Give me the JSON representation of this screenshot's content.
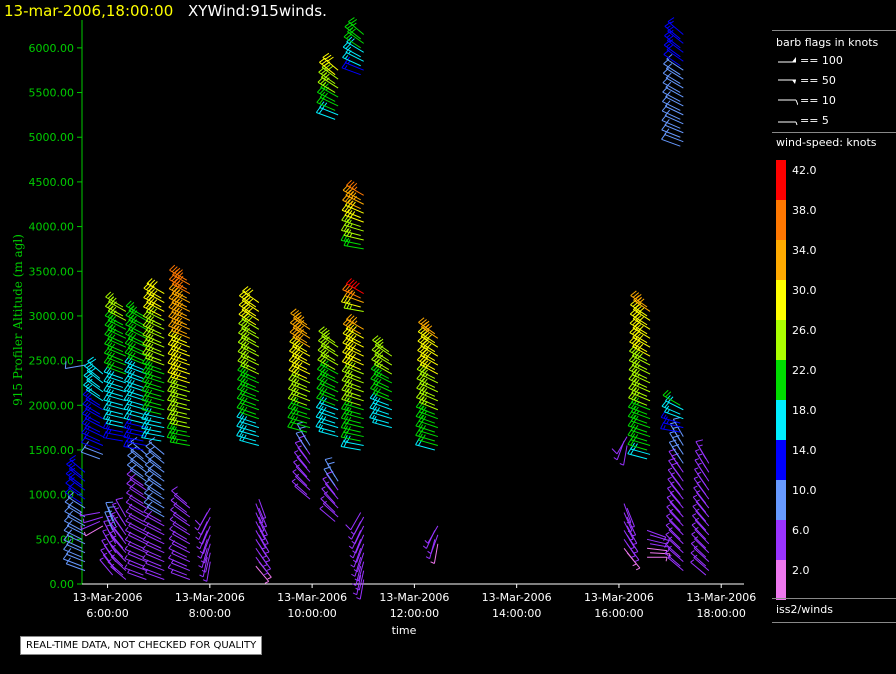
{
  "header": {
    "date": "13-mar-2006,18:00:00",
    "title": "XYWind:915winds."
  },
  "legend": {
    "barb_title": "barb flags in knots",
    "barb_flags": [
      "== 100",
      "== 50",
      "== 10",
      "== 5"
    ],
    "speed_title": "wind-speed: knots",
    "colorbar": [
      {
        "label": "42.0",
        "color": "#ff0000"
      },
      {
        "label": "38.0",
        "color": "#ff7700"
      },
      {
        "label": "34.0",
        "color": "#ffaa00"
      },
      {
        "label": "30.0",
        "color": "#ffff00"
      },
      {
        "label": "26.0",
        "color": "#aaff00"
      },
      {
        "label": "22.0",
        "color": "#00dd00"
      },
      {
        "label": "18.0",
        "color": "#00eeff"
      },
      {
        "label": "14.0",
        "color": "#0000ff"
      },
      {
        "label": "10.0",
        "color": "#6699ff"
      },
      {
        "label": "6.0",
        "color": "#9933ff"
      },
      {
        "label": "2.0",
        "color": "#ee77ee"
      }
    ],
    "platform": "iss2/winds"
  },
  "quality_note": "REAL-TIME DATA, NOT CHECKED FOR QUALITY",
  "chart_data": {
    "type": "scatter",
    "subtype": "wind-barbs",
    "ylabel": "915 Profiler Altitude (m agl)",
    "xlabel": "time",
    "ylim": [
      0,
      6200
    ],
    "xlim_hours": [
      5.5,
      18.25
    ],
    "yticks": [
      "0.00",
      "500.00",
      "1000.00",
      "1500.00",
      "2000.00",
      "2500.00",
      "3000.00",
      "3500.00",
      "4000.00",
      "4500.00",
      "5000.00",
      "5500.00",
      "6000.00"
    ],
    "xticks": [
      {
        "date": "13-Mar-2006",
        "time": "6:00:00",
        "hour": 6
      },
      {
        "date": "13-Mar-2006",
        "time": "8:00:00",
        "hour": 8
      },
      {
        "date": "13-Mar-2006",
        "time": "10:00:00",
        "hour": 10
      },
      {
        "date": "13-Mar-2006",
        "time": "12:00:00",
        "hour": 12
      },
      {
        "date": "13-Mar-2006",
        "time": "14:00:00",
        "hour": 14
      },
      {
        "date": "13-Mar-2006",
        "time": "16:00:00",
        "hour": 16
      },
      {
        "date": "13-Mar-2006",
        "time": "18:00:00",
        "hour": 18
      }
    ],
    "profiles": [
      {
        "hour": 5.5,
        "segments": [
          {
            "from": 150,
            "to": 1250,
            "speed": 11,
            "dir": 300
          },
          {
            "from": 2450,
            "to": 2450,
            "speed": 15,
            "dir": 270
          }
        ]
      },
      {
        "hour": 5.85,
        "segments": [
          {
            "from": 650,
            "to": 800,
            "speed": 5,
            "dir": 250
          },
          {
            "from": 1400,
            "to": 2350,
            "speed": 15,
            "dir": 300
          }
        ]
      },
      {
        "hour": 6.1,
        "segments": [
          {
            "from": 100,
            "to": 700,
            "speed": 7,
            "dir": 330
          }
        ]
      },
      {
        "hour": 6.3,
        "segments": [
          {
            "from": 50,
            "to": 750,
            "speed": 6,
            "dir": 320
          },
          {
            "from": 1600,
            "to": 3100,
            "speed": 20,
            "dir": 290
          }
        ]
      },
      {
        "hour": 6.7,
        "segments": [
          {
            "from": 50,
            "to": 1450,
            "speed": 7,
            "dir": 300
          },
          {
            "from": 1500,
            "to": 3000,
            "speed": 19,
            "dir": 290
          }
        ]
      },
      {
        "hour": 7.05,
        "segments": [
          {
            "from": 50,
            "to": 1450,
            "speed": 8,
            "dir": 300
          },
          {
            "from": 1600,
            "to": 3250,
            "speed": 24,
            "dir": 290
          }
        ]
      },
      {
        "hour": 7.55,
        "segments": [
          {
            "from": 50,
            "to": 900,
            "speed": 6,
            "dir": 300
          },
          {
            "from": 1550,
            "to": 3400,
            "speed": 30,
            "dir": 290
          }
        ]
      },
      {
        "hour": 7.95,
        "segments": [
          {
            "from": 250,
            "to": 850,
            "speed": 6,
            "dir": 200
          }
        ]
      },
      {
        "hour": 8.9,
        "segments": [
          {
            "from": 200,
            "to": 950,
            "speed": 5,
            "dir": 150
          },
          {
            "from": 1550,
            "to": 3150,
            "speed": 24,
            "dir": 295
          }
        ]
      },
      {
        "hour": 9.9,
        "segments": [
          {
            "from": 950,
            "to": 1600,
            "speed": 7,
            "dir": 320
          },
          {
            "from": 1700,
            "to": 2900,
            "speed": 28,
            "dir": 295
          }
        ]
      },
      {
        "hour": 10.45,
        "segments": [
          {
            "from": 700,
            "to": 1200,
            "speed": 7,
            "dir": 320
          },
          {
            "from": 1650,
            "to": 2700,
            "speed": 22,
            "dir": 295
          },
          {
            "from": 5200,
            "to": 5750,
            "speed": 24,
            "dir": 300
          }
        ]
      },
      {
        "hour": 10.95,
        "segments": [
          {
            "from": 50,
            "to": 800,
            "speed": 6,
            "dir": 200
          },
          {
            "from": 1500,
            "to": 2850,
            "speed": 26,
            "dir": 290
          },
          {
            "from": 3050,
            "to": 3250,
            "speed": 32,
            "dir": 290
          },
          {
            "from": 3750,
            "to": 4350,
            "speed": 29,
            "dir": 290
          },
          {
            "from": 5700,
            "to": 6150,
            "speed": 19,
            "dir": 300
          }
        ]
      },
      {
        "hour": 11.5,
        "segments": [
          {
            "from": 1750,
            "to": 2600,
            "speed": 22,
            "dir": 295
          }
        ]
      },
      {
        "hour": 12.4,
        "segments": [
          {
            "from": 1500,
            "to": 2800,
            "speed": 26,
            "dir": 295
          },
          {
            "from": 450,
            "to": 650,
            "speed": 5,
            "dir": 200
          }
        ]
      },
      {
        "hour": 16.1,
        "segments": [
          {
            "from": 350,
            "to": 900,
            "speed": 5,
            "dir": 150
          },
          {
            "from": 1550,
            "to": 1650,
            "speed": 6,
            "dir": 200
          }
        ]
      },
      {
        "hour": 16.55,
        "segments": [
          {
            "from": 300,
            "to": 600,
            "speed": 4,
            "dir": 100
          },
          {
            "from": 1400,
            "to": 3100,
            "speed": 26,
            "dir": 295
          }
        ]
      },
      {
        "hour": 17.2,
        "segments": [
          {
            "from": 150,
            "to": 1650,
            "speed": 7,
            "dir": 320
          },
          {
            "from": 1700,
            "to": 2000,
            "speed": 17,
            "dir": 290
          },
          {
            "from": 4900,
            "to": 6150,
            "speed": 11,
            "dir": 300
          }
        ]
      },
      {
        "hour": 17.7,
        "segments": [
          {
            "from": 100,
            "to": 1400,
            "speed": 6,
            "dir": 320
          }
        ]
      }
    ]
  }
}
